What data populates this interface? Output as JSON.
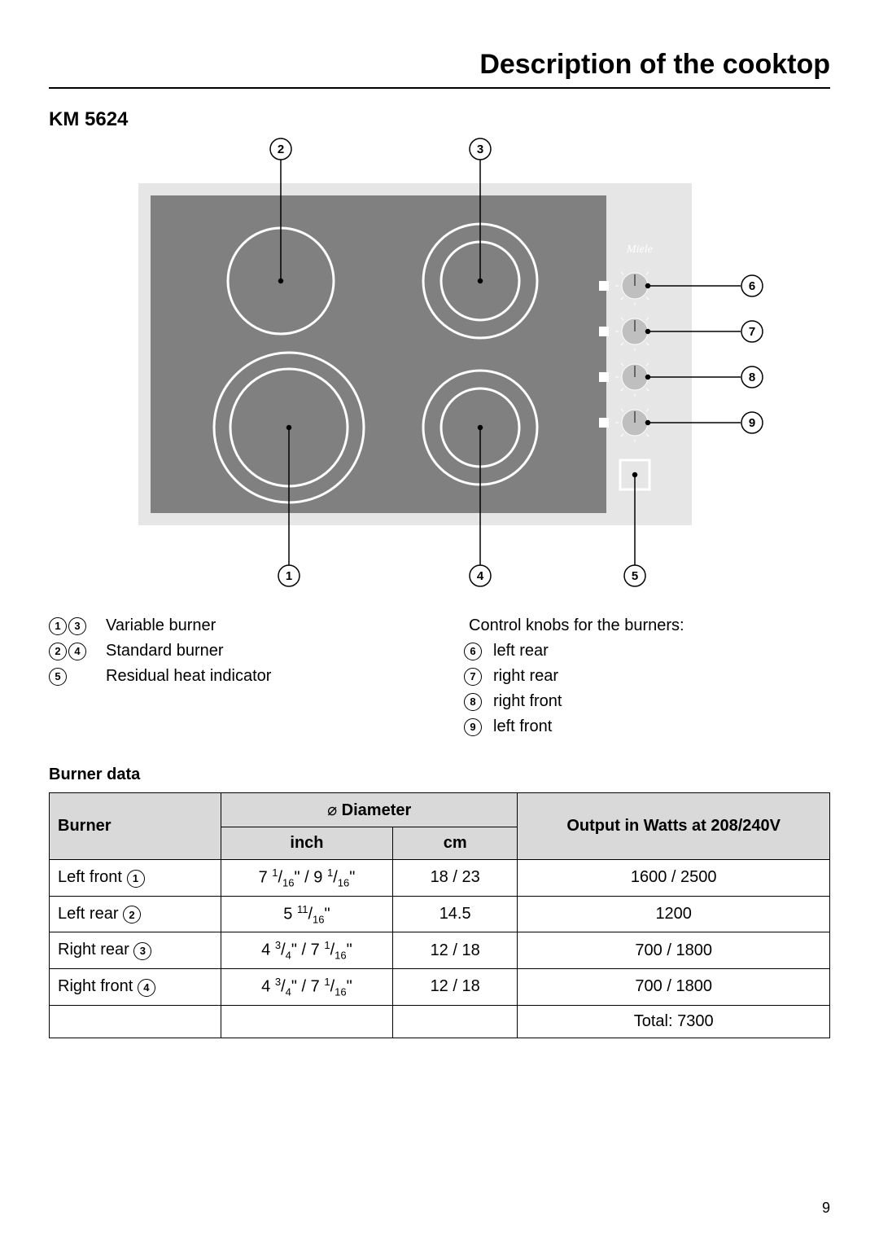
{
  "page": {
    "title": "Description of the cooktop",
    "model": "KM 5624",
    "number": "9"
  },
  "diagram": {
    "brand": "Miele",
    "bg_outer": "#e6e6e6",
    "bg_surface": "#808080",
    "stroke_white": "#ffffff",
    "stroke_black": "#000000",
    "knob_fill": "#bfbfbf",
    "callouts_top": [
      "2",
      "3"
    ],
    "callouts_bottom": [
      "1",
      "4",
      "5"
    ],
    "callouts_right": [
      "6",
      "7",
      "8",
      "9"
    ]
  },
  "legend": {
    "left": [
      {
        "nums": [
          "1",
          "3"
        ],
        "text": "Variable burner"
      },
      {
        "nums": [
          "2",
          "4"
        ],
        "text": "Standard burner"
      },
      {
        "nums": [
          "5"
        ],
        "text": "Residual heat indicator"
      }
    ],
    "right_heading": "Control knobs for the burners:",
    "right": [
      {
        "nums": [
          "6"
        ],
        "text": "left rear"
      },
      {
        "nums": [
          "7"
        ],
        "text": "right rear"
      },
      {
        "nums": [
          "8"
        ],
        "text": "right front"
      },
      {
        "nums": [
          "9"
        ],
        "text": "left front"
      }
    ]
  },
  "table": {
    "heading": "Burner data",
    "header": {
      "burner": "Burner",
      "diameter": "Diameter",
      "inch": "inch",
      "cm": "cm",
      "output": "Output in Watts at 208/240V"
    },
    "rows": [
      {
        "name": "Left front",
        "num": "1",
        "inch_html": "7 <span class='sup'>1</span>/<span class='sub'>16</span>\" / 9 <span class='sup'>1</span>/<span class='sub'>16</span>\"",
        "cm": "18 / 23",
        "watts": "1600 / 2500"
      },
      {
        "name": "Left rear",
        "num": "2",
        "inch_html": "5 <span class='sup'>11</span>/<span class='sub'>16</span>\"",
        "cm": "14.5",
        "watts": "1200"
      },
      {
        "name": "Right rear",
        "num": "3",
        "inch_html": "4 <span class='sup'>3</span>/<span class='sub'>4</span>\" / 7 <span class='sup'>1</span>/<span class='sub'>16</span>\"",
        "cm": "12 / 18",
        "watts": "700 / 1800"
      },
      {
        "name": "Right front",
        "num": "4",
        "inch_html": "4 <span class='sup'>3</span>/<span class='sub'>4</span>\" / 7 <span class='sup'>1</span>/<span class='sub'>16</span>\"",
        "cm": "12 / 18",
        "watts": "700 / 1800"
      }
    ],
    "total": "Total: 7300"
  }
}
